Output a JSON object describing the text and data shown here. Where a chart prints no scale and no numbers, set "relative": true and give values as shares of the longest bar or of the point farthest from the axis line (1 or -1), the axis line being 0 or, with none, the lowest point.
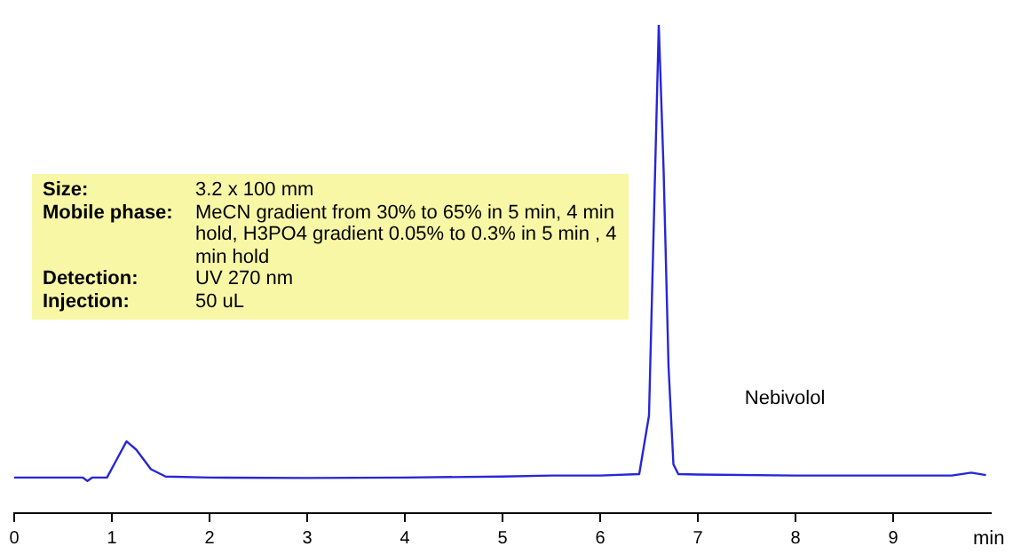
{
  "chart_data": {
    "type": "line",
    "relative": true,
    "xlabel": "min",
    "xlim": [
      0,
      10
    ],
    "xticks": [
      0,
      1,
      2,
      3,
      4,
      5,
      6,
      7,
      8,
      9
    ],
    "grid": false,
    "legend": false,
    "marker": "none",
    "line_style": "solid",
    "annotations": [
      "Size: 3.2 x 100 mm",
      "Mobile phase: MeCN gradient from 30% to 65% in 5 min, 4 min  hold, H3PO4 gradient 0.05% to 0.3% in 5 min , 4 min  hold",
      "Detection: UV 270 nm",
      "Injection: 50 uL",
      "Nebivolol"
    ],
    "series": [
      {
        "color": "#2626d9",
        "x": [
          0,
          0.7,
          0.75,
          0.8,
          0.95,
          1.05,
          1.15,
          1.25,
          1.4,
          1.55,
          2,
          3,
          4,
          5,
          5.5,
          6,
          6.4,
          6.5,
          6.55,
          6.6,
          6.65,
          6.7,
          6.75,
          6.8,
          7,
          8,
          9,
          9.6,
          9.8,
          9.95
        ],
        "values": [
          0.073,
          0.073,
          0.066,
          0.073,
          0.073,
          0.11,
          0.147,
          0.13,
          0.09,
          0.075,
          0.073,
          0.072,
          0.073,
          0.075,
          0.077,
          0.077,
          0.08,
          0.2,
          0.6,
          1,
          0.7,
          0.3,
          0.1,
          0.08,
          0.079,
          0.077,
          0.077,
          0.077,
          0.083,
          0.078
        ]
      }
    ]
  }
}
